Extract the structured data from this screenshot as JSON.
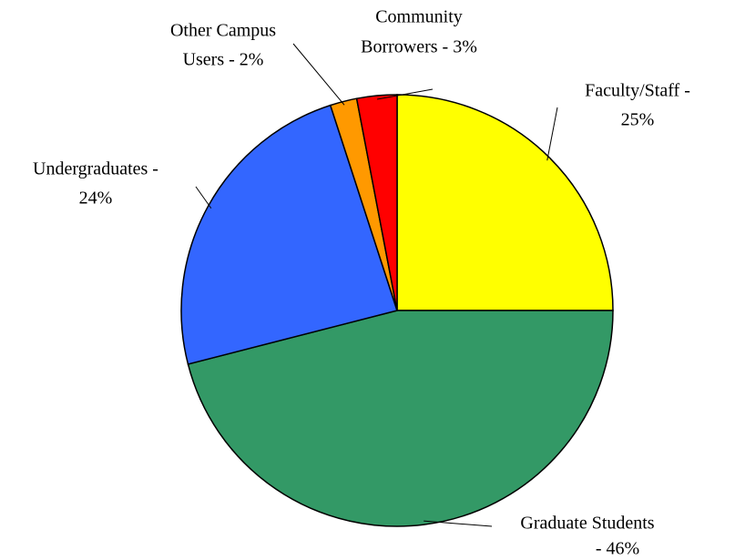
{
  "chart_data": {
    "type": "pie",
    "labels": [
      [
        "Faculty/Staff -",
        "25%"
      ],
      [
        "Graduate Students",
        "- 46%"
      ],
      [
        "Undergraduates -",
        "24%"
      ],
      [
        "Other Campus",
        "Users - 2%"
      ],
      [
        "Community",
        "Borrowers - 3%"
      ]
    ],
    "values": [
      25,
      46,
      24,
      2,
      3
    ],
    "colors": [
      "#ffff00",
      "#339966",
      "#3366ff",
      "#ff9900",
      "#ff0000"
    ]
  }
}
